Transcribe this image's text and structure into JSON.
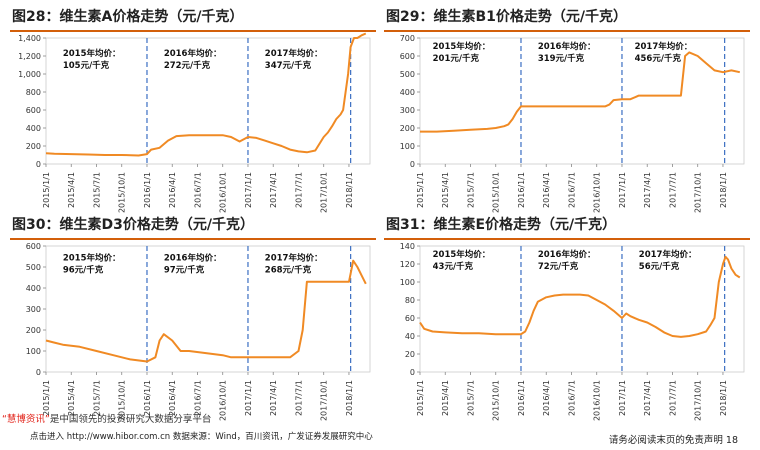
{
  "colors": {
    "line": "#f08a24",
    "vline": "#3b6fc2",
    "title_rule": "#d35f0a",
    "axis": "#888888",
    "brand": "#e2231a"
  },
  "footer": {
    "note_brand": "“慧博资讯”",
    "note_rest": "是中国领先的投资研究大数据分享平台",
    "source": "点击进入 http://www.hibor.com.cn   数据来源：Wind，百川资讯，广发证券发展研究中心",
    "right": "请务必阅读末页的免责声明",
    "page": "18"
  },
  "chart_data": [
    {
      "type": "line",
      "title": "图28：维生素A价格走势（元/千克）",
      "ylim": [
        0,
        1400
      ],
      "yticks": [
        "0",
        "200",
        "400",
        "600",
        "800",
        "1,000",
        "1,200",
        "1,400"
      ],
      "xticks": [
        "2015/1/1",
        "2015/4/1",
        "2015/7/1",
        "2015/10/1",
        "2016/1/1",
        "2016/4/1",
        "2016/7/1",
        "2016/10/1",
        "2017/1/1",
        "2017/4/1",
        "2017/7/1",
        "2017/10/1",
        "2018/1/1"
      ],
      "xrange": [
        0,
        38.5
      ],
      "vlines": [
        12,
        24,
        36.2
      ],
      "annotations": [
        {
          "title": "2015年均价：",
          "value": "105元/千克",
          "x": 2.0,
          "y": 1200
        },
        {
          "title": "2016年均价：",
          "value": "272元/千克",
          "x": 14.0,
          "y": 1200
        },
        {
          "title": "2017年均价：",
          "value": "347元/千克",
          "x": 26.0,
          "y": 1200
        }
      ],
      "series": [
        {
          "x": [
            0,
            1,
            3,
            5,
            7,
            9,
            11,
            12,
            12.5,
            13.5,
            14.5,
            15.5,
            17,
            19,
            21,
            22,
            23,
            24,
            25,
            26,
            27,
            28,
            29,
            30,
            31,
            32,
            33,
            33.5,
            34,
            34.5,
            35,
            35.3,
            35.6,
            35.9,
            36.2,
            36.6,
            37,
            37.5,
            38
          ],
          "values": [
            120,
            115,
            110,
            105,
            100,
            100,
            95,
            110,
            160,
            180,
            260,
            310,
            320,
            320,
            320,
            300,
            250,
            300,
            290,
            260,
            230,
            200,
            160,
            140,
            130,
            150,
            300,
            350,
            420,
            500,
            550,
            600,
            800,
            1000,
            1300,
            1400,
            1400,
            1430,
            1450
          ]
        }
      ]
    },
    {
      "type": "line",
      "title": "图29：维生素B1价格走势（元/千克）",
      "ylim": [
        0,
        700
      ],
      "yticks": [
        "0",
        "100",
        "200",
        "300",
        "400",
        "500",
        "600",
        "700"
      ],
      "xticks": [
        "2015/1/1",
        "2015/4/1",
        "2015/7/1",
        "2015/10/1",
        "2016/1/1",
        "2016/4/1",
        "2016/7/1",
        "2016/10/1",
        "2017/1/1",
        "2017/4/1",
        "2017/7/1",
        "2017/10/1",
        "2018/1/1"
      ],
      "xrange": [
        0,
        38.5
      ],
      "vlines": [
        12,
        24,
        36.2
      ],
      "annotations": [
        {
          "title": "2015年均价：",
          "value": "201元/千克",
          "x": 1.5,
          "y": 640
        },
        {
          "title": "2016年均价：",
          "value": "319元/千克",
          "x": 14.0,
          "y": 640
        },
        {
          "title": "2017年均价：",
          "value": "456元/千克",
          "x": 25.5,
          "y": 640
        }
      ],
      "series": [
        {
          "x": [
            0,
            2,
            4,
            6,
            8,
            9,
            10,
            10.5,
            11,
            11.5,
            12,
            12.5,
            14,
            16,
            18,
            20,
            22,
            22.5,
            23,
            24,
            25,
            26,
            27,
            28,
            29,
            30,
            31,
            31.5,
            32,
            33,
            34,
            35,
            36,
            37,
            38
          ],
          "values": [
            180,
            180,
            185,
            190,
            195,
            200,
            210,
            220,
            250,
            290,
            320,
            320,
            320,
            320,
            320,
            320,
            320,
            330,
            355,
            360,
            360,
            380,
            380,
            380,
            380,
            380,
            380,
            600,
            620,
            600,
            560,
            520,
            510,
            520,
            510
          ]
        }
      ]
    },
    {
      "type": "line",
      "title": "图30：维生素D3价格走势（元/千克）",
      "ylim": [
        0,
        600
      ],
      "yticks": [
        "0",
        "100",
        "200",
        "300",
        "400",
        "500",
        "600"
      ],
      "xticks": [
        "2015/1/1",
        "2015/4/1",
        "2015/7/1",
        "2015/10/1",
        "2016/1/1",
        "2016/4/1",
        "2016/7/1",
        "2016/10/1",
        "2017/1/1",
        "2017/4/1",
        "2017/7/1",
        "2017/10/1",
        "2018/1/1"
      ],
      "xrange": [
        0,
        38.5
      ],
      "vlines": [
        12,
        24,
        36.2
      ],
      "annotations": [
        {
          "title": "2015年均价：",
          "value": "96元/千克",
          "x": 2.0,
          "y": 530
        },
        {
          "title": "2016年均价：",
          "value": "97元/千克",
          "x": 14.0,
          "y": 530
        },
        {
          "title": "2017年均价：",
          "value": "268元/千克",
          "x": 26.0,
          "y": 530
        }
      ],
      "series": [
        {
          "x": [
            0,
            1,
            2,
            4,
            6,
            8,
            10,
            12,
            13,
            13.5,
            14,
            15,
            16,
            17,
            19,
            21,
            22,
            23,
            24,
            26,
            28,
            29,
            30,
            30.5,
            31,
            33,
            35,
            36,
            36.5,
            37,
            37.5,
            38
          ],
          "values": [
            150,
            140,
            130,
            120,
            100,
            80,
            60,
            50,
            70,
            150,
            180,
            150,
            100,
            100,
            90,
            80,
            70,
            70,
            70,
            70,
            70,
            70,
            100,
            200,
            430,
            430,
            430,
            430,
            530,
            500,
            460,
            420
          ]
        }
      ]
    },
    {
      "type": "line",
      "title": "图31：维生素E价格走势（元/千克）",
      "ylim": [
        0,
        140
      ],
      "yticks": [
        "0",
        "20",
        "40",
        "60",
        "80",
        "100",
        "120",
        "140"
      ],
      "xticks": [
        "2015/1/1",
        "2015/4/1",
        "2015/7/1",
        "2015/10/1",
        "2016/1/1",
        "2016/4/1",
        "2016/7/1",
        "2016/10/1",
        "2017/1/1",
        "2017/4/1",
        "2017/7/1",
        "2017/10/1",
        "2018/1/1"
      ],
      "xrange": [
        0,
        38.5
      ],
      "vlines": [
        12,
        24,
        36.2
      ],
      "annotations": [
        {
          "title": "2015年均价：",
          "value": "43元/千克",
          "x": 1.5,
          "y": 128
        },
        {
          "title": "2016年均价：",
          "value": "72元/千克",
          "x": 14.0,
          "y": 128
        },
        {
          "title": "2017年均价：",
          "value": "56元/千克",
          "x": 26.0,
          "y": 128
        }
      ],
      "series": [
        {
          "x": [
            0,
            0.5,
            1.5,
            3,
            5,
            7,
            9,
            11,
            12,
            12.5,
            13,
            13.5,
            14,
            15,
            16,
            17,
            18,
            19,
            20,
            21,
            22,
            23,
            24,
            24.5,
            25,
            26,
            27,
            28,
            29,
            30,
            31,
            32,
            33,
            34,
            34.5,
            35,
            35.5,
            36,
            36.3,
            36.6,
            37,
            37.5,
            38
          ],
          "values": [
            55,
            48,
            45,
            44,
            43,
            43,
            42,
            42,
            42,
            45,
            55,
            68,
            78,
            83,
            85,
            86,
            86,
            86,
            85,
            80,
            75,
            68,
            60,
            65,
            62,
            58,
            55,
            50,
            44,
            40,
            39,
            40,
            42,
            45,
            52,
            60,
            100,
            120,
            128,
            125,
            115,
            108,
            105
          ]
        }
      ]
    }
  ]
}
